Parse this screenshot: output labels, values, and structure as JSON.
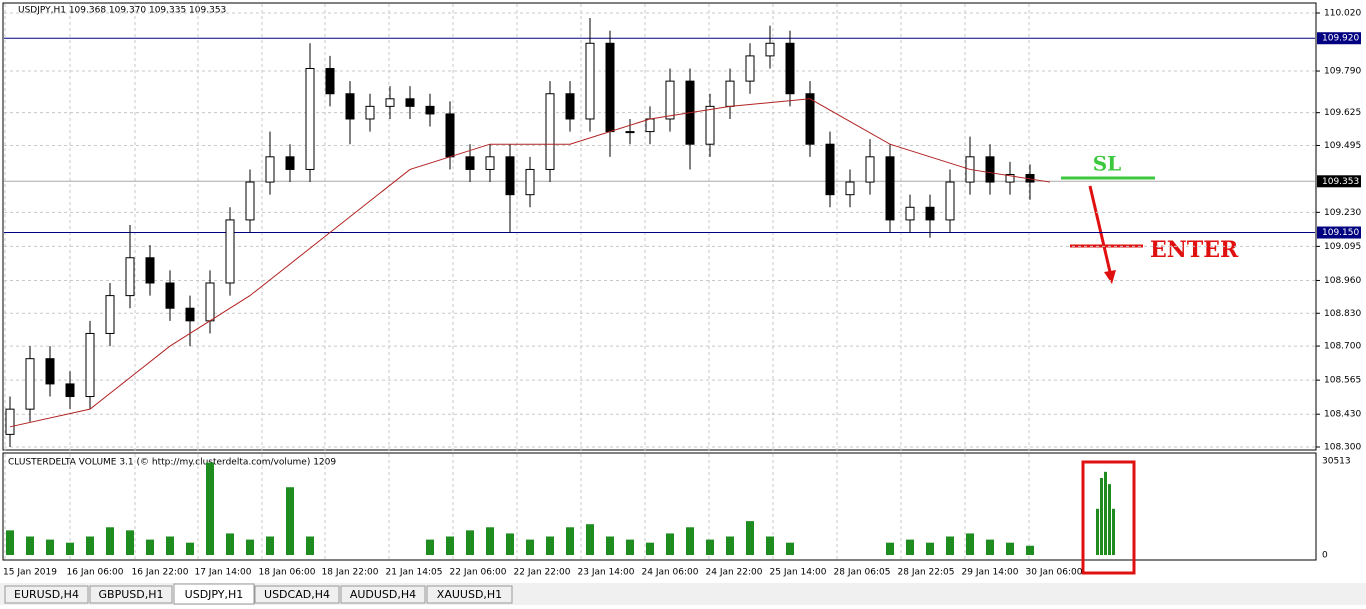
{
  "chart": {
    "header": "USDJPY,H1  109.368 109.370 109.335 109.353",
    "indicator": "CLUSTERDELTA VOLUME 3.1 (© http://my.clusterdelta.com/volume) 1209",
    "ylim": [
      108.3,
      110.02
    ],
    "yticks": [
      {
        "value": 110.02,
        "label": "110.020"
      },
      {
        "value": 109.79,
        "label": "109.790"
      },
      {
        "value": 109.625,
        "label": "109.625"
      },
      {
        "value": 109.495,
        "label": "109.495"
      },
      {
        "value": 109.23,
        "label": "109.230"
      },
      {
        "value": 109.095,
        "label": "109.095"
      },
      {
        "value": 108.96,
        "label": "108.960"
      },
      {
        "value": 108.83,
        "label": "108.830"
      },
      {
        "value": 108.7,
        "label": "108.700"
      },
      {
        "value": 108.565,
        "label": "108.565"
      },
      {
        "value": 108.43,
        "label": "108.430"
      },
      {
        "value": 108.3,
        "label": "108.300"
      }
    ],
    "levels": [
      {
        "value": 109.92,
        "label": "109.920"
      },
      {
        "value": 109.15,
        "label": "109.150"
      }
    ],
    "current": {
      "value": 109.353,
      "label": "109.353"
    },
    "time_labels": [
      "15 Jan 2019",
      "16 Jan 06:00",
      "16 Jan 22:00",
      "17 Jan 14:00",
      "18 Jan 06:00",
      "18 Jan 22:00",
      "21 Jan 14:05",
      "22 Jan 06:00",
      "22 Jan 22:00",
      "23 Jan 14:00",
      "24 Jan 06:00",
      "24 Jan 22:00",
      "25 Jan 14:00",
      "28 Jan 06:05",
      "28 Jan 22:05",
      "29 Jan 14:00",
      "30 Jan 06:00"
    ],
    "candles": [
      [
        108.35,
        108.5,
        108.3,
        108.45
      ],
      [
        108.45,
        108.7,
        108.4,
        108.65
      ],
      [
        108.65,
        108.7,
        108.5,
        108.55
      ],
      [
        108.55,
        108.6,
        108.45,
        108.5
      ],
      [
        108.5,
        108.8,
        108.45,
        108.75
      ],
      [
        108.75,
        108.95,
        108.7,
        108.9
      ],
      [
        108.9,
        109.18,
        108.85,
        109.05
      ],
      [
        109.05,
        109.1,
        108.9,
        108.95
      ],
      [
        108.95,
        109,
        108.8,
        108.85
      ],
      [
        108.85,
        108.9,
        108.7,
        108.8
      ],
      [
        108.8,
        109,
        108.75,
        108.95
      ],
      [
        108.95,
        109.25,
        108.9,
        109.2
      ],
      [
        109.2,
        109.4,
        109.15,
        109.35
      ],
      [
        109.35,
        109.55,
        109.3,
        109.45
      ],
      [
        109.45,
        109.5,
        109.35,
        109.4
      ],
      [
        109.4,
        109.9,
        109.35,
        109.8
      ],
      [
        109.8,
        109.85,
        109.65,
        109.7
      ],
      [
        109.7,
        109.75,
        109.5,
        109.6
      ],
      [
        109.6,
        109.7,
        109.55,
        109.65
      ],
      [
        109.65,
        109.73,
        109.6,
        109.68
      ],
      [
        109.68,
        109.73,
        109.6,
        109.65
      ],
      [
        109.65,
        109.7,
        109.57,
        109.62
      ],
      [
        109.62,
        109.67,
        109.4,
        109.45
      ],
      [
        109.45,
        109.5,
        109.35,
        109.4
      ],
      [
        109.4,
        109.5,
        109.35,
        109.45
      ],
      [
        109.45,
        109.5,
        109.15,
        109.3
      ],
      [
        109.3,
        109.45,
        109.25,
        109.4
      ],
      [
        109.4,
        109.75,
        109.35,
        109.7
      ],
      [
        109.7,
        109.75,
        109.55,
        109.6
      ],
      [
        109.6,
        110,
        109.55,
        109.9
      ],
      [
        109.9,
        109.95,
        109.45,
        109.55
      ],
      [
        109.55,
        109.6,
        109.5,
        109.55
      ],
      [
        109.55,
        109.65,
        109.5,
        109.6
      ],
      [
        109.6,
        109.8,
        109.55,
        109.75
      ],
      [
        109.75,
        109.8,
        109.4,
        109.5
      ],
      [
        109.5,
        109.7,
        109.45,
        109.65
      ],
      [
        109.65,
        109.8,
        109.6,
        109.75
      ],
      [
        109.75,
        109.9,
        109.7,
        109.85
      ],
      [
        109.85,
        109.97,
        109.8,
        109.9
      ],
      [
        109.9,
        109.95,
        109.65,
        109.7
      ],
      [
        109.7,
        109.75,
        109.45,
        109.5
      ],
      [
        109.5,
        109.55,
        109.25,
        109.3
      ],
      [
        109.3,
        109.4,
        109.25,
        109.35
      ],
      [
        109.35,
        109.52,
        109.3,
        109.45
      ],
      [
        109.45,
        109.5,
        109.15,
        109.2
      ],
      [
        109.2,
        109.3,
        109.15,
        109.25
      ],
      [
        109.25,
        109.3,
        109.13,
        109.2
      ],
      [
        109.2,
        109.4,
        109.15,
        109.35
      ],
      [
        109.35,
        109.53,
        109.3,
        109.45
      ],
      [
        109.45,
        109.5,
        109.3,
        109.35
      ],
      [
        109.35,
        109.43,
        109.3,
        109.38
      ],
      [
        109.38,
        109.42,
        109.28,
        109.35
      ]
    ],
    "ma": [
      108.38,
      108.45,
      108.7,
      108.9,
      109.15,
      109.4,
      109.5,
      109.5,
      109.6,
      109.65,
      109.68,
      109.5,
      109.4,
      109.35
    ],
    "volume_ylim": [
      0,
      30513
    ],
    "volume_ticks": [
      30513,
      0
    ],
    "volume": [
      8000,
      6000,
      5000,
      4000,
      6000,
      9000,
      8000,
      5000,
      6000,
      4000,
      30000,
      7000,
      5000,
      6000,
      22000,
      6000,
      0,
      0,
      0,
      0,
      0,
      5000,
      6000,
      8000,
      9000,
      7000,
      5000,
      6000,
      9000,
      10000,
      6000,
      5000,
      4000,
      7000,
      9000,
      5000,
      6000,
      11000,
      6000,
      4000,
      0,
      0,
      0,
      0,
      4000,
      5000,
      4000,
      6000,
      7000,
      5000,
      4000,
      3000
    ],
    "volume_highlight": [
      15000,
      25000,
      27000,
      23000,
      15000
    ],
    "annotations": {
      "sl": "SL",
      "enter": "ENTER"
    }
  },
  "tabs": [
    "EURUSD,H4",
    "GBPUSD,H1",
    "USDJPY,H1",
    "USDCAD,H4",
    "AUDUSD,H4",
    "XAUUSD,H1"
  ],
  "active_tab": 2
}
